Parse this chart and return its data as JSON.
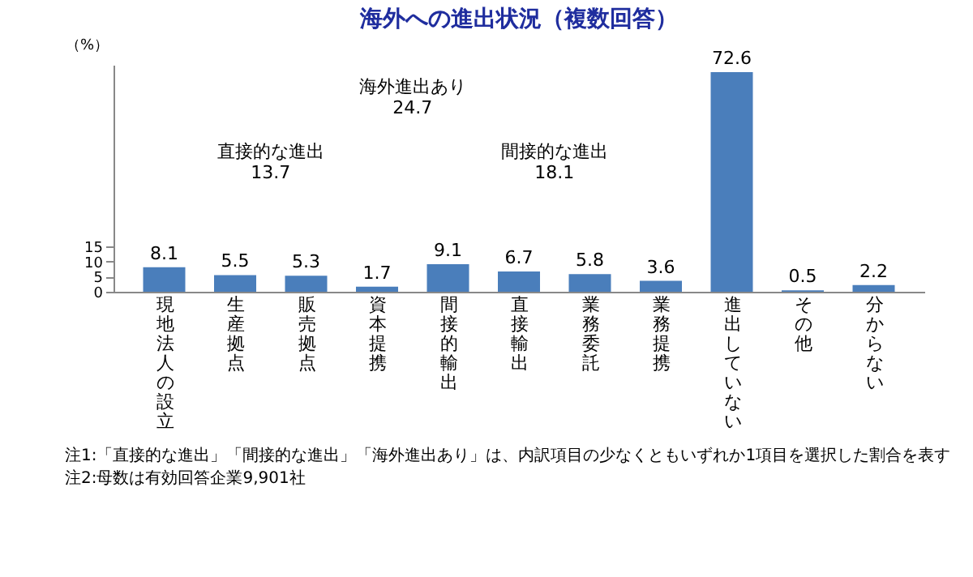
{
  "chart_data": {
    "type": "bar",
    "title": "海外への進出状況（複数回答）",
    "ylabel": "（%）",
    "categories": [
      "現地法人の設立",
      "生産拠点",
      "販売拠点",
      "資本提携",
      "間接的輸出",
      "直接輸出",
      "業務委託",
      "業務提携",
      "進出していない",
      "その他",
      "分からない"
    ],
    "values": [
      8.1,
      5.5,
      5.3,
      1.7,
      9.1,
      6.7,
      5.8,
      3.6,
      72.6,
      0.5,
      2.2
    ],
    "color": "#4a7ebb",
    "data_labels": true,
    "ylim": [
      0,
      75
    ],
    "yticks": [
      0,
      5,
      10,
      15
    ],
    "grid": false,
    "annotations": [
      "海外進出あり\n24.7",
      "直接的な進出\n13.7",
      "間接的な進出\n18.1",
      "注1:「直接的な進出」「間接的な進出」「海外進出あり」は、内訳項目の少なくともいずれか1項目を選択した割合を表す",
      "注2:母数は有効回答企業9,901社"
    ]
  }
}
